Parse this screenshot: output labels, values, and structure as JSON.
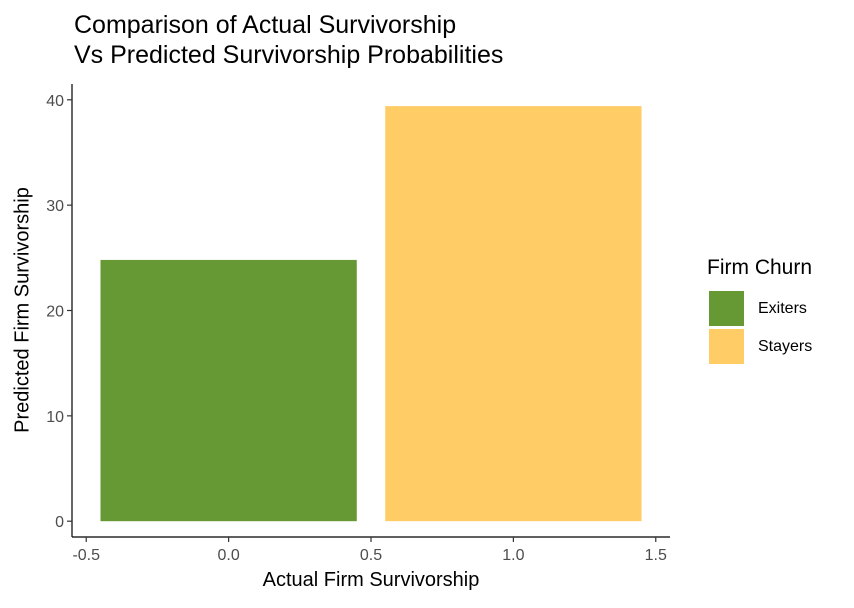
{
  "chart_data": {
    "type": "bar",
    "title_lines": [
      "Comparison of Actual Survivorship",
      "Vs Predicted Survivorship Probabilities"
    ],
    "xlabel": "Actual Firm Survivorship",
    "ylabel": "Predicted Firm Survivorship",
    "x": [
      0,
      1
    ],
    "values": [
      24.8,
      39.4
    ],
    "bar_width": 0.9,
    "xlim": [
      -0.55,
      1.55
    ],
    "ylim": [
      -1.5,
      41.5
    ],
    "xticks": [
      -0.5,
      0.0,
      0.5,
      1.0,
      1.5
    ],
    "xtick_labels": [
      "-0.5",
      "0.0",
      "0.5",
      "1.0",
      "1.5"
    ],
    "yticks": [
      0,
      10,
      20,
      30,
      40
    ],
    "ytick_labels": [
      "0",
      "10",
      "20",
      "30",
      "40"
    ],
    "grid": false,
    "legend": {
      "title": "Firm Churn",
      "position": "right",
      "entries": [
        {
          "name": "Exiters",
          "color": "#669933"
        },
        {
          "name": "Stayers",
          "color": "#FFCC66"
        }
      ]
    },
    "colors": [
      "#669933",
      "#FFCC66"
    ]
  }
}
